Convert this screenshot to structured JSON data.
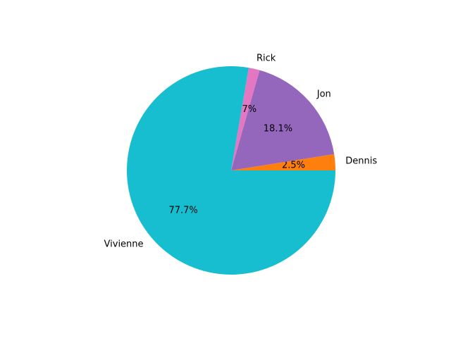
{
  "chart_data": {
    "type": "pie",
    "title": "",
    "start_angle_deg": 0,
    "direction": "counterclockwise",
    "slices": [
      {
        "label": "Dennis",
        "value": 2.5,
        "pct_label": "2.5%",
        "color": "#ff7f0e"
      },
      {
        "label": "Jon",
        "value": 18.1,
        "pct_label": "18.1%",
        "color": "#9467bd"
      },
      {
        "label": "Rick",
        "value": 1.7,
        "pct_label": "1.7%",
        "color": "#e377c2"
      },
      {
        "label": "Vivienne",
        "value": 77.7,
        "pct_label": "77.7%",
        "color": "#17becf"
      }
    ]
  }
}
